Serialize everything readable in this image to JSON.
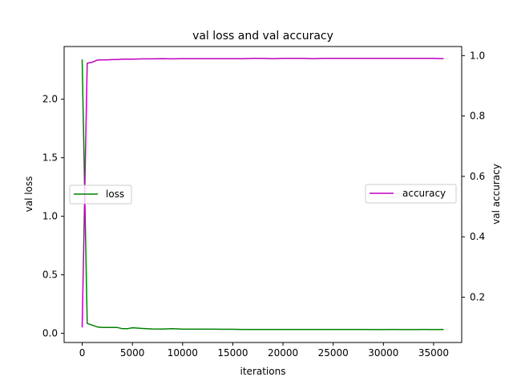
{
  "chart_data": {
    "type": "line",
    "title": "val loss and val accuracy",
    "xlabel": "iterations",
    "ylabel_left": "val loss",
    "ylabel_right": "val accuracy",
    "xlim": [
      -1800,
      37800
    ],
    "ylim_left": [
      -0.078,
      2.45
    ],
    "ylim_right": [
      0.05,
      1.03
    ],
    "xticks": [
      "0",
      "5000",
      "10000",
      "15000",
      "20000",
      "25000",
      "30000",
      "35000"
    ],
    "xtick_values": [
      0,
      5000,
      10000,
      15000,
      20000,
      25000,
      30000,
      35000
    ],
    "yticks_left": [
      "0.0",
      "0.5",
      "1.0",
      "1.5",
      "2.0"
    ],
    "ytick_values_left": [
      0.0,
      0.5,
      1.0,
      1.5,
      2.0
    ],
    "yticks_right": [
      "0.2",
      "0.4",
      "0.6",
      "0.8",
      "1.0"
    ],
    "ytick_values_right": [
      0.2,
      0.4,
      0.6,
      0.8,
      1.0
    ],
    "grid": false,
    "series": [
      {
        "name": "loss",
        "axis": "left",
        "color": "#008000",
        "legend_placement": "center-left",
        "x": [
          0,
          500,
          1000,
          1500,
          2000,
          2500,
          3000,
          3500,
          4000,
          4500,
          5000,
          6000,
          7000,
          8000,
          9000,
          10000,
          11000,
          12000,
          13000,
          14000,
          15000,
          16000,
          17000,
          18000,
          19000,
          20000,
          21000,
          22000,
          23000,
          24000,
          25000,
          26000,
          27000,
          28000,
          29000,
          30000,
          31000,
          32000,
          33000,
          34000,
          35000,
          36000
        ],
        "values": [
          2.34,
          0.085,
          0.07,
          0.055,
          0.05,
          0.05,
          0.05,
          0.05,
          0.04,
          0.04,
          0.048,
          0.042,
          0.038,
          0.037,
          0.04,
          0.036,
          0.036,
          0.036,
          0.036,
          0.035,
          0.035,
          0.034,
          0.034,
          0.034,
          0.034,
          0.033,
          0.034,
          0.034,
          0.034,
          0.033,
          0.033,
          0.033,
          0.033,
          0.033,
          0.032,
          0.032,
          0.033,
          0.032,
          0.032,
          0.033,
          0.032,
          0.033
        ]
      },
      {
        "name": "accuracy",
        "axis": "right",
        "color": "#bf00bf",
        "legend_placement": "center-right",
        "x": [
          0,
          500,
          1000,
          1500,
          2000,
          2500,
          3000,
          3500,
          4000,
          4500,
          5000,
          6000,
          7000,
          8000,
          9000,
          10000,
          11000,
          12000,
          13000,
          14000,
          15000,
          16000,
          17000,
          18000,
          19000,
          20000,
          21000,
          22000,
          23000,
          24000,
          25000,
          26000,
          27000,
          28000,
          29000,
          30000,
          31000,
          32000,
          33000,
          34000,
          35000,
          36000
        ],
        "values": [
          0.1,
          0.975,
          0.978,
          0.985,
          0.986,
          0.986,
          0.987,
          0.987,
          0.988,
          0.988,
          0.988,
          0.989,
          0.989,
          0.99,
          0.989,
          0.99,
          0.99,
          0.99,
          0.99,
          0.99,
          0.99,
          0.99,
          0.991,
          0.991,
          0.99,
          0.991,
          0.991,
          0.991,
          0.99,
          0.991,
          0.991,
          0.991,
          0.991,
          0.991,
          0.991,
          0.991,
          0.991,
          0.991,
          0.991,
          0.991,
          0.991,
          0.99
        ]
      }
    ]
  }
}
